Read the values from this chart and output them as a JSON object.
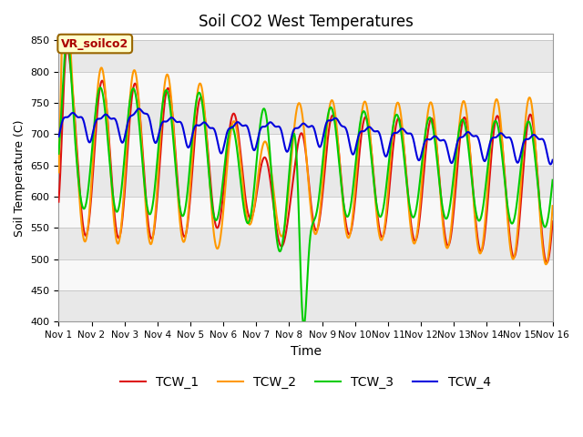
{
  "title": "Soil CO2 West Temperatures",
  "xlabel": "Time",
  "ylabel": "Soil Temperature (C)",
  "ylim": [
    400,
    860
  ],
  "xlim": [
    0,
    15
  ],
  "xtick_labels": [
    "Nov 1",
    "Nov 2",
    "Nov 3",
    "Nov 4",
    "Nov 5",
    "Nov 6",
    "Nov 7",
    "Nov 8",
    "Nov 9",
    "Nov 10",
    "Nov 11",
    "Nov 12",
    "Nov 13",
    "Nov 14",
    "Nov 15",
    "Nov 16"
  ],
  "xtick_positions": [
    0,
    1,
    2,
    3,
    4,
    5,
    6,
    7,
    8,
    9,
    10,
    11,
    12,
    13,
    14,
    15
  ],
  "label_box_text": "VR_soilco2",
  "label_box_bg": "#ffffcc",
  "label_box_edge": "#996600",
  "label_box_textcolor": "#aa0000",
  "colors": {
    "TCW_1": "#dd1111",
    "TCW_2": "#ff9900",
    "TCW_3": "#00cc00",
    "TCW_4": "#0000dd"
  },
  "bg_color_light": "#e8e8e8",
  "bg_color_white": "#f8f8f8",
  "linewidth": 1.5,
  "legend_entries": [
    "TCW_1",
    "TCW_2",
    "TCW_3",
    "TCW_4"
  ],
  "yticks": [
    400,
    450,
    500,
    550,
    600,
    650,
    700,
    750,
    800,
    850
  ]
}
